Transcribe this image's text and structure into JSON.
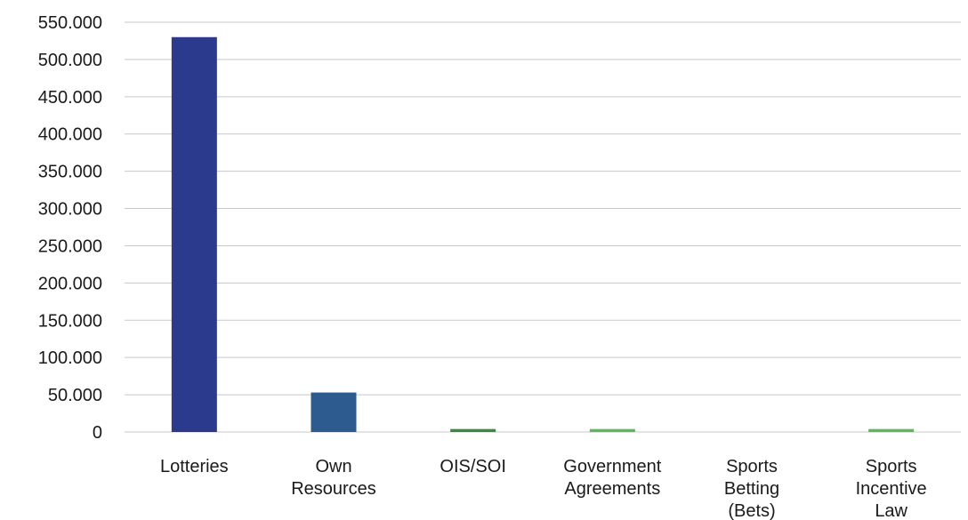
{
  "chart_data": {
    "type": "bar",
    "categories": [
      [
        "Lotteries"
      ],
      [
        "Own",
        "Resources"
      ],
      [
        "OIS/SOI"
      ],
      [
        "Government",
        "Agreements"
      ],
      [
        "Sports",
        "Betting",
        "(Bets)"
      ],
      [
        "Sports",
        "Incentive",
        "Law"
      ]
    ],
    "values": [
      530000,
      53000,
      4000,
      4000,
      0,
      4000
    ],
    "bar_colors": [
      "#2b3a8c",
      "#2d5a8f",
      "#3a8a45",
      "#5cb85c",
      "#5cb85c",
      "#5cb85c"
    ],
    "ylim": [
      0,
      550000
    ],
    "yticks": [
      0,
      50000,
      100000,
      150000,
      200000,
      250000,
      300000,
      350000,
      400000,
      450000,
      500000,
      550000
    ],
    "ytick_labels": [
      "0",
      "50.000",
      "100.000",
      "150.000",
      "200.000",
      "250.000",
      "300.000",
      "350.000",
      "400.000",
      "450.000",
      "500.000",
      "550.000"
    ],
    "grid": true,
    "legend": "none"
  }
}
